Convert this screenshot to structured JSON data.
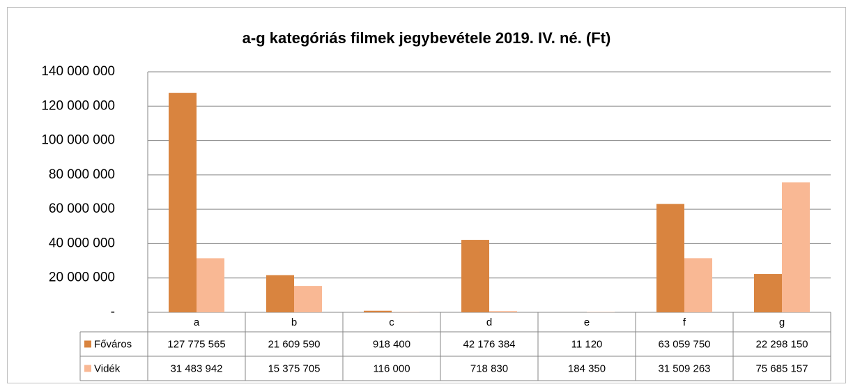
{
  "chart_data": {
    "type": "bar",
    "title": "a-g kategóriás filmek jegybevétele 2019. IV. né. (Ft)",
    "categories": [
      "a",
      "b",
      "c",
      "d",
      "e",
      "f",
      "g"
    ],
    "series": [
      {
        "name": "Főváros",
        "color": "#d9843f",
        "values": [
          127775565,
          21609590,
          918400,
          42176384,
          11120,
          63059750,
          22298150
        ],
        "value_labels": [
          "127 775 565",
          "21 609 590",
          "918 400",
          "42 176 384",
          "11 120",
          "63 059 750",
          "22 298 150"
        ]
      },
      {
        "name": "Vidék",
        "color": "#f9b894",
        "values": [
          31483942,
          15375705,
          116000,
          718830,
          184350,
          31509263,
          75685157
        ],
        "value_labels": [
          "31 483 942",
          "15 375 705",
          "116 000",
          "718 830",
          "184 350",
          "31 509 263",
          "75 685 157"
        ]
      }
    ],
    "ylim": [
      0,
      140000000
    ],
    "yticks": [
      {
        "value": 0,
        "label": "-"
      },
      {
        "value": 20000000,
        "label": "20 000 000"
      },
      {
        "value": 40000000,
        "label": "40 000 000"
      },
      {
        "value": 60000000,
        "label": "60 000 000"
      },
      {
        "value": 80000000,
        "label": "80 000 000"
      },
      {
        "value": 100000000,
        "label": "100 000 000"
      },
      {
        "value": 120000000,
        "label": "120 000 000"
      },
      {
        "value": 140000000,
        "label": "140 000 000"
      }
    ],
    "grid": true
  }
}
